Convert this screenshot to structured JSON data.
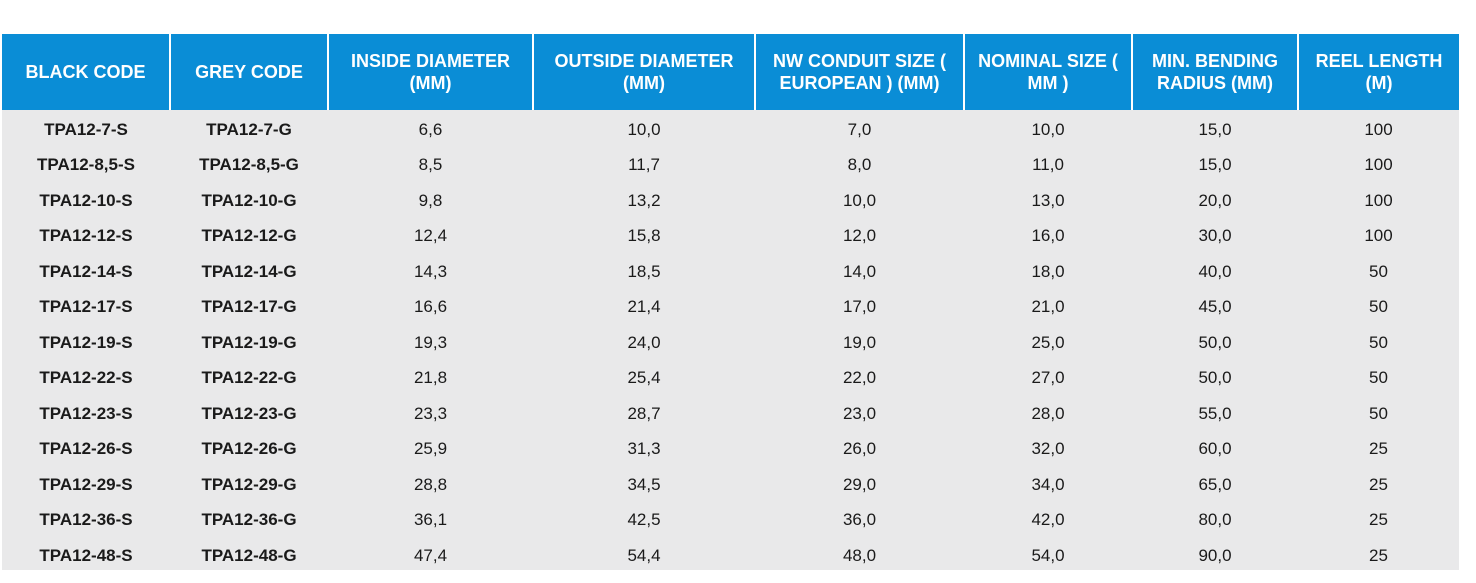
{
  "table": {
    "headers": [
      "BLACK CODE",
      "GREY CODE",
      "INSIDE DIAMETER (MM)",
      "OUTSIDE DIAMETER (MM)",
      "NW CONDUIT SIZE ( EUROPEAN ) (MM)",
      "NOMINAL SIZE ( MM )",
      "MIN. BENDING RADIUS (MM)",
      "REEL LENGTH (M)"
    ],
    "rows": [
      [
        "TPA12-7-S",
        "TPA12-7-G",
        "6,6",
        "10,0",
        "7,0",
        "10,0",
        "15,0",
        "100"
      ],
      [
        "TPA12-8,5-S",
        "TPA12-8,5-G",
        "8,5",
        "11,7",
        "8,0",
        "11,0",
        "15,0",
        "100"
      ],
      [
        "TPA12-10-S",
        "TPA12-10-G",
        "9,8",
        "13,2",
        "10,0",
        "13,0",
        "20,0",
        "100"
      ],
      [
        "TPA12-12-S",
        "TPA12-12-G",
        "12,4",
        "15,8",
        "12,0",
        "16,0",
        "30,0",
        "100"
      ],
      [
        "TPA12-14-S",
        "TPA12-14-G",
        "14,3",
        "18,5",
        "14,0",
        "18,0",
        "40,0",
        "50"
      ],
      [
        "TPA12-17-S",
        "TPA12-17-G",
        "16,6",
        "21,4",
        "17,0",
        "21,0",
        "45,0",
        "50"
      ],
      [
        "TPA12-19-S",
        "TPA12-19-G",
        "19,3",
        "24,0",
        "19,0",
        "25,0",
        "50,0",
        "50"
      ],
      [
        "TPA12-22-S",
        "TPA12-22-G",
        "21,8",
        "25,4",
        "22,0",
        "27,0",
        "50,0",
        "50"
      ],
      [
        "TPA12-23-S",
        "TPA12-23-G",
        "23,3",
        "28,7",
        "23,0",
        "28,0",
        "55,0",
        "50"
      ],
      [
        "TPA12-26-S",
        "TPA12-26-G",
        "25,9",
        "31,3",
        "26,0",
        "32,0",
        "60,0",
        "25"
      ],
      [
        "TPA12-29-S",
        "TPA12-29-G",
        "28,8",
        "34,5",
        "29,0",
        "34,0",
        "65,0",
        "25"
      ],
      [
        "TPA12-36-S",
        "TPA12-36-G",
        "36,1",
        "42,5",
        "36,0",
        "42,0",
        "80,0",
        "25"
      ],
      [
        "TPA12-48-S",
        "TPA12-48-G",
        "47,4",
        "54,4",
        "48,0",
        "54,0",
        "90,0",
        "25"
      ]
    ]
  },
  "colors": {
    "header_background": "#0a8dd6",
    "header_text": "#ffffff",
    "body_background": "#e9e9ea",
    "body_text": "#1a1a1a"
  }
}
